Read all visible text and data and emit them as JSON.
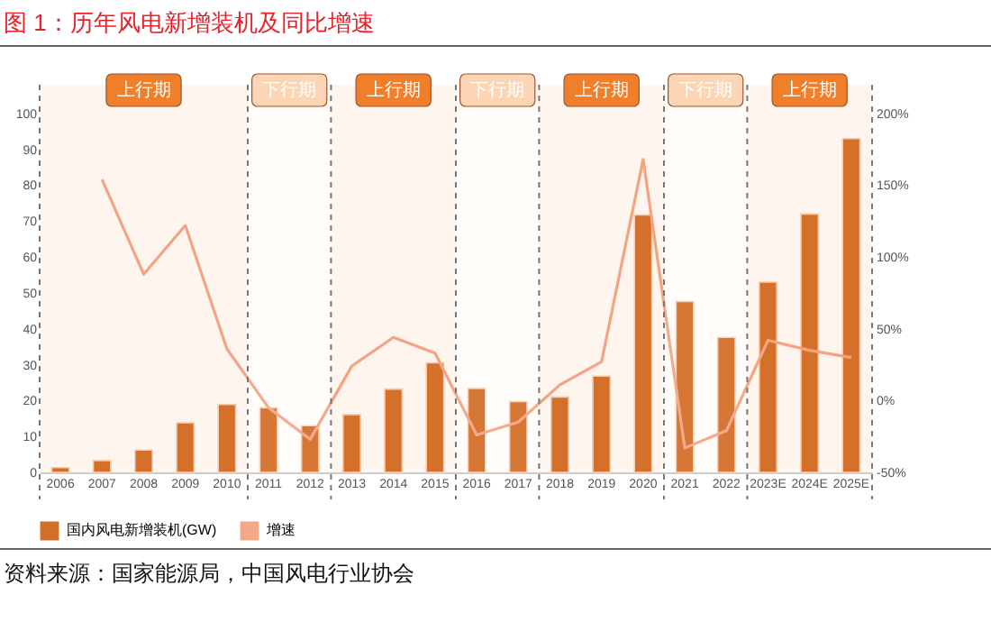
{
  "chart_data": {
    "type": "bar",
    "title": "图 1：历年风电新增装机及同比增速",
    "categories": [
      "2006",
      "2007",
      "2008",
      "2009",
      "2010",
      "2011",
      "2012",
      "2013",
      "2014",
      "2015",
      "2016",
      "2017",
      "2018",
      "2019",
      "2020",
      "2021",
      "2022",
      "2023E",
      "2024E",
      "2025E"
    ],
    "series": [
      {
        "name": "国内风电新增装机(GW)",
        "color": "#d36f2b",
        "values": [
          1.3,
          3.3,
          6.2,
          13.8,
          18.9,
          18,
          13,
          16.1,
          23.2,
          30.5,
          23.4,
          19.7,
          21,
          26.8,
          71.7,
          47.6,
          37.6,
          53,
          72,
          93
        ]
      },
      {
        "name": "增速",
        "type": "line",
        "axis": "y2",
        "color": "#f4a88a",
        "values": [
          null,
          154,
          88,
          122,
          36,
          -5,
          -27,
          24,
          44,
          33,
          -24,
          -15,
          11,
          27,
          168,
          -33,
          -21,
          42,
          35,
          30
        ]
      }
    ],
    "ylim": [
      0,
      108
    ],
    "yticks": [
      0,
      10,
      20,
      30,
      40,
      50,
      60,
      70,
      80,
      90,
      100
    ],
    "y2lim": [
      -50,
      220
    ],
    "y2ticks": [
      {
        "value": -50,
        "label": "-50%"
      },
      {
        "value": 0,
        "label": "0%"
      },
      {
        "value": 50,
        "label": "50%"
      },
      {
        "value": 100,
        "label": "100%"
      },
      {
        "value": 150,
        "label": "150%"
      },
      {
        "value": 200,
        "label": "200%"
      }
    ],
    "bands": [
      {
        "axis": "x",
        "from": "2006",
        "to": "2010",
        "label": "上行期",
        "color": "#f07f2c"
      },
      {
        "axis": "x",
        "from": "2011",
        "to": "2012",
        "label": "下行期",
        "color": "#fcd5b5"
      },
      {
        "axis": "x",
        "from": "2013",
        "to": "2015",
        "label": "上行期",
        "color": "#f07f2c"
      },
      {
        "axis": "x",
        "from": "2016",
        "to": "2017",
        "label": "下行期",
        "color": "#fcd5b5"
      },
      {
        "axis": "x",
        "from": "2018",
        "to": "2020",
        "label": "上行期",
        "color": "#f07f2c"
      },
      {
        "axis": "x",
        "from": "2021",
        "to": "2022",
        "label": "下行期",
        "color": "#fcd5b5"
      },
      {
        "axis": "x",
        "from": "2023E",
        "to": "2025E",
        "label": "上行期",
        "color": "#f07f2c"
      }
    ],
    "legend": "bottom",
    "grid": false,
    "marker": "none",
    "line_style": "solid",
    "annotations": [
      "资料来源：国家能源局，中国风电行业协会"
    ]
  }
}
